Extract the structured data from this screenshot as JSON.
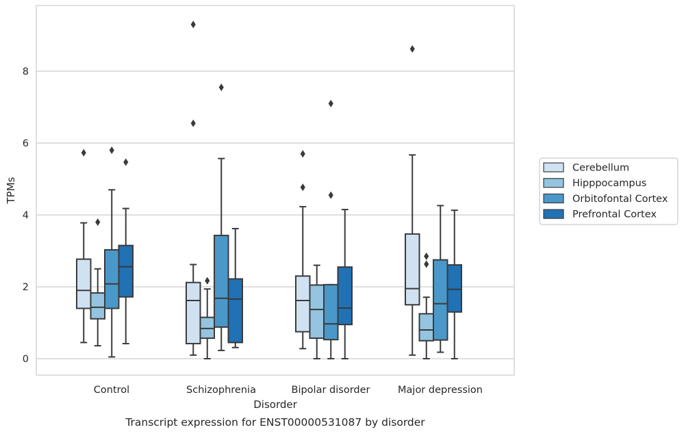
{
  "chart_data": {
    "type": "box",
    "title": "",
    "caption": "Transcript expression for ENST00000531087 by disorder",
    "xlabel": "Disorder",
    "ylabel": "TPMs",
    "ylim": [
      -0.45,
      9.9
    ],
    "yticks": [
      0,
      2,
      4,
      6,
      8
    ],
    "grid": "horizontal",
    "legend_position": "right",
    "categories": [
      "Control",
      "Schizophrenia",
      "Bipolar disorder",
      "Major depression"
    ],
    "series": [
      {
        "name": "Cerebellum",
        "color": "#d0e1f2",
        "boxes": [
          {
            "whisker_low": 0.45,
            "q1": 1.4,
            "median": 1.9,
            "q3": 2.77,
            "whisker_high": 3.78,
            "outliers": [
              5.73
            ]
          },
          {
            "whisker_low": 0.1,
            "q1": 0.42,
            "median": 1.62,
            "q3": 2.12,
            "whisker_high": 2.62,
            "outliers": [
              6.55,
              9.3
            ]
          },
          {
            "whisker_low": 0.28,
            "q1": 0.75,
            "median": 1.62,
            "q3": 2.3,
            "whisker_high": 4.23,
            "outliers": [
              4.77,
              5.7
            ]
          },
          {
            "whisker_low": 0.1,
            "q1": 1.5,
            "median": 1.95,
            "q3": 3.47,
            "whisker_high": 5.67,
            "outliers": [
              8.62
            ]
          }
        ]
      },
      {
        "name": "Hipppocampus",
        "color": "#94c4df",
        "boxes": [
          {
            "whisker_low": 0.36,
            "q1": 1.11,
            "median": 1.43,
            "q3": 1.83,
            "whisker_high": 2.5,
            "outliers": [
              3.8
            ]
          },
          {
            "whisker_low": 0.0,
            "q1": 0.57,
            "median": 0.84,
            "q3": 1.15,
            "whisker_high": 1.94,
            "outliers": [
              2.17
            ]
          },
          {
            "whisker_low": 0.0,
            "q1": 0.57,
            "median": 1.37,
            "q3": 2.05,
            "whisker_high": 2.6,
            "outliers": []
          },
          {
            "whisker_low": 0.0,
            "q1": 0.5,
            "median": 0.8,
            "q3": 1.25,
            "whisker_high": 1.71,
            "outliers": [
              2.63,
              2.85
            ]
          }
        ]
      },
      {
        "name": "Orbitofontal Cortex",
        "color": "#4a98c9",
        "boxes": [
          {
            "whisker_low": 0.05,
            "q1": 1.4,
            "median": 2.08,
            "q3": 3.03,
            "whisker_high": 4.7,
            "outliers": [
              5.8
            ]
          },
          {
            "whisker_low": 0.23,
            "q1": 0.88,
            "median": 1.68,
            "q3": 3.43,
            "whisker_high": 5.57,
            "outliers": [
              7.55
            ]
          },
          {
            "whisker_low": 0.0,
            "q1": 0.53,
            "median": 0.97,
            "q3": 2.06,
            "whisker_high": 2.06,
            "outliers": [
              4.55,
              7.1
            ]
          },
          {
            "whisker_low": 0.18,
            "q1": 0.52,
            "median": 1.53,
            "q3": 2.75,
            "whisker_high": 4.26,
            "outliers": []
          }
        ]
      },
      {
        "name": "Prefrontal Cortex",
        "color": "#2171b5",
        "boxes": [
          {
            "whisker_low": 0.42,
            "q1": 1.72,
            "median": 2.56,
            "q3": 3.15,
            "whisker_high": 4.18,
            "outliers": [
              5.47
            ]
          },
          {
            "whisker_low": 0.31,
            "q1": 0.45,
            "median": 1.66,
            "q3": 2.22,
            "whisker_high": 3.62,
            "outliers": []
          },
          {
            "whisker_low": 0.0,
            "q1": 0.95,
            "median": 1.41,
            "q3": 2.55,
            "whisker_high": 4.15,
            "outliers": []
          },
          {
            "whisker_low": 0.0,
            "q1": 1.3,
            "median": 1.93,
            "q3": 2.61,
            "whisker_high": 4.13,
            "outliers": []
          }
        ]
      }
    ]
  }
}
